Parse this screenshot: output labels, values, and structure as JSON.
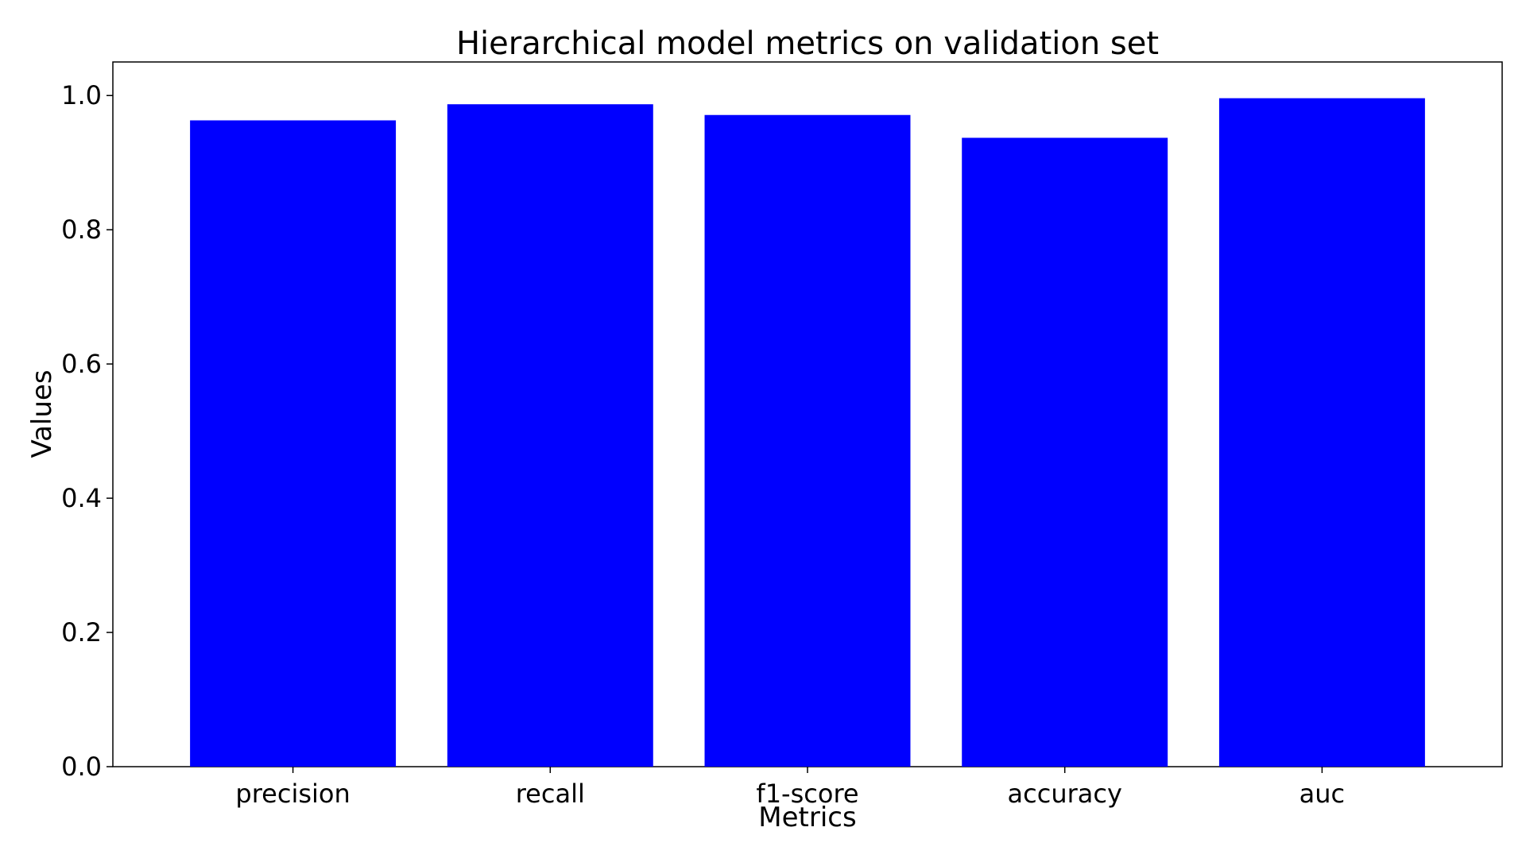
{
  "chart_data": {
    "type": "bar",
    "title": "Hierarchical model metrics on validation set",
    "xlabel": "Metrics",
    "ylabel": "Values",
    "categories": [
      "precision",
      "recall",
      "f1-score",
      "accuracy",
      "auc"
    ],
    "values": [
      0.963,
      0.987,
      0.971,
      0.937,
      0.996
    ],
    "ylim": [
      0,
      1.05
    ],
    "yticks": [
      "0.0",
      "0.2",
      "0.4",
      "0.6",
      "0.8",
      "1.0"
    ],
    "bar_color": "#0000ff",
    "grid": false,
    "legend": "none"
  }
}
